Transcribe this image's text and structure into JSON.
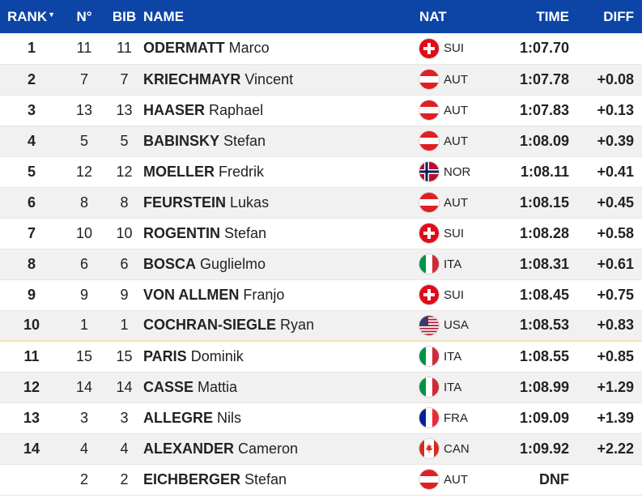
{
  "header": {
    "rank": "RANK",
    "no": "N°",
    "bib": "BIB",
    "name": "NAME",
    "nat": "NAT",
    "time": "TIME",
    "diff": "DIFF"
  },
  "colors": {
    "header_bg": "#0c45a6",
    "alt_row": "#f1f1f1",
    "separator": "#f3e3b8"
  },
  "rows": [
    {
      "rank": "1",
      "no": "11",
      "bib": "11",
      "last": "ODERMATT",
      "first": "Marco",
      "nat": "SUI",
      "flag": "flag-sui-icon",
      "time": "1:07.70",
      "diff": ""
    },
    {
      "rank": "2",
      "no": "7",
      "bib": "7",
      "last": "KRIECHMAYR",
      "first": "Vincent",
      "nat": "AUT",
      "flag": "flag-aut-icon",
      "time": "1:07.78",
      "diff": "+0.08"
    },
    {
      "rank": "3",
      "no": "13",
      "bib": "13",
      "last": "HAASER",
      "first": "Raphael",
      "nat": "AUT",
      "flag": "flag-aut-icon",
      "time": "1:07.83",
      "diff": "+0.13"
    },
    {
      "rank": "4",
      "no": "5",
      "bib": "5",
      "last": "BABINSKY",
      "first": "Stefan",
      "nat": "AUT",
      "flag": "flag-aut-icon",
      "time": "1:08.09",
      "diff": "+0.39"
    },
    {
      "rank": "5",
      "no": "12",
      "bib": "12",
      "last": "MOELLER",
      "first": "Fredrik",
      "nat": "NOR",
      "flag": "flag-nor-icon",
      "time": "1:08.11",
      "diff": "+0.41"
    },
    {
      "rank": "6",
      "no": "8",
      "bib": "8",
      "last": "FEURSTEIN",
      "first": "Lukas",
      "nat": "AUT",
      "flag": "flag-aut-icon",
      "time": "1:08.15",
      "diff": "+0.45"
    },
    {
      "rank": "7",
      "no": "10",
      "bib": "10",
      "last": "ROGENTIN",
      "first": "Stefan",
      "nat": "SUI",
      "flag": "flag-sui-icon",
      "time": "1:08.28",
      "diff": "+0.58"
    },
    {
      "rank": "8",
      "no": "6",
      "bib": "6",
      "last": "BOSCA",
      "first": "Guglielmo",
      "nat": "ITA",
      "flag": "flag-ita-icon",
      "time": "1:08.31",
      "diff": "+0.61"
    },
    {
      "rank": "9",
      "no": "9",
      "bib": "9",
      "last": "VON ALLMEN",
      "first": "Franjo",
      "nat": "SUI",
      "flag": "flag-sui-icon",
      "time": "1:08.45",
      "diff": "+0.75"
    },
    {
      "rank": "10",
      "no": "1",
      "bib": "1",
      "last": "COCHRAN-SIEGLE",
      "first": "Ryan",
      "nat": "USA",
      "flag": "flag-usa-icon",
      "time": "1:08.53",
      "diff": "+0.83"
    },
    {
      "rank": "11",
      "no": "15",
      "bib": "15",
      "last": "PARIS",
      "first": "Dominik",
      "nat": "ITA",
      "flag": "flag-ita-icon",
      "time": "1:08.55",
      "diff": "+0.85"
    },
    {
      "rank": "12",
      "no": "14",
      "bib": "14",
      "last": "CASSE",
      "first": "Mattia",
      "nat": "ITA",
      "flag": "flag-ita-icon",
      "time": "1:08.99",
      "diff": "+1.29"
    },
    {
      "rank": "13",
      "no": "3",
      "bib": "3",
      "last": "ALLEGRE",
      "first": "Nils",
      "nat": "FRA",
      "flag": "flag-fra-icon",
      "time": "1:09.09",
      "diff": "+1.39"
    },
    {
      "rank": "14",
      "no": "4",
      "bib": "4",
      "last": "ALEXANDER",
      "first": "Cameron",
      "nat": "CAN",
      "flag": "flag-can-icon",
      "time": "1:09.92",
      "diff": "+2.22"
    },
    {
      "rank": "",
      "no": "2",
      "bib": "2",
      "last": "EICHBERGER",
      "first": "Stefan",
      "nat": "AUT",
      "flag": "flag-aut-icon",
      "time": "DNF",
      "diff": ""
    }
  ]
}
